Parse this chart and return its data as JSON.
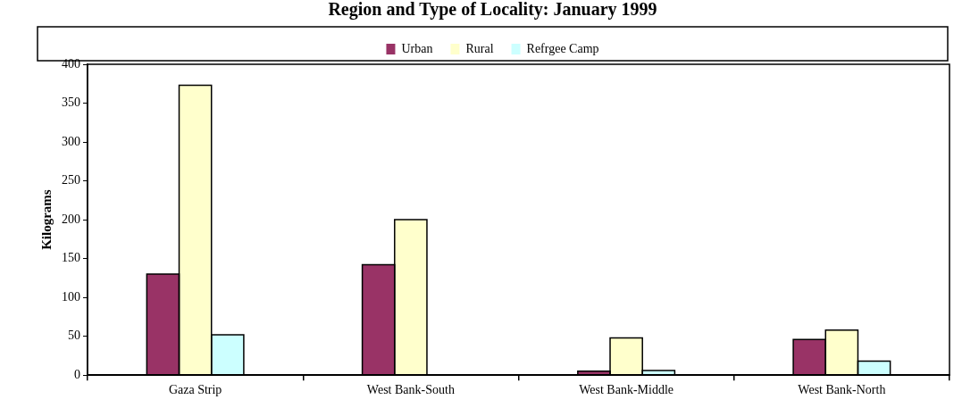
{
  "chart_data": {
    "type": "bar",
    "title": "Region and Type of Locality: January 1999",
    "ylabel": "Kilograms",
    "categories": [
      "Gaza Strip",
      "West Bank-South",
      "West Bank-Middle",
      "West Bank-North"
    ],
    "series": [
      {
        "name": "Urban",
        "color": "#993366",
        "values": [
          130,
          142,
          5,
          46
        ]
      },
      {
        "name": "Rural",
        "color": "#ffffcc",
        "values": [
          373,
          200,
          48,
          58
        ]
      },
      {
        "name": "Refrgee Camp",
        "color": "#ccffff",
        "values": [
          52,
          null,
          6,
          18
        ]
      }
    ],
    "ylim": [
      0,
      400
    ],
    "yticks": [
      0,
      50,
      100,
      150,
      200,
      250,
      300,
      350,
      400
    ],
    "grid": false,
    "legend": "top"
  }
}
